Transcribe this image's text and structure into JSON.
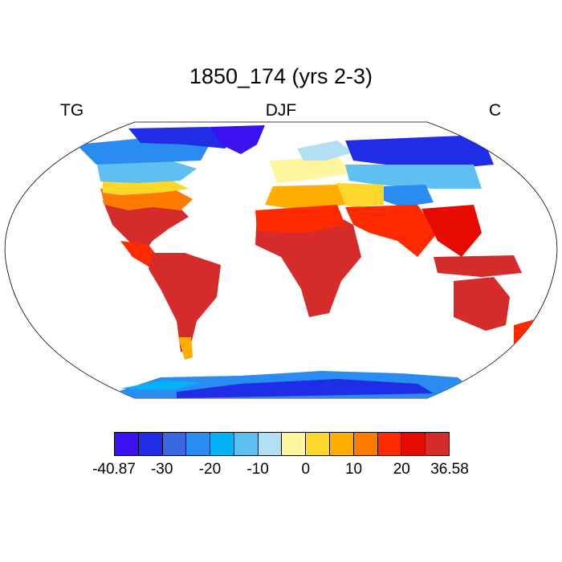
{
  "title": "1850_174 (yrs 2-3)",
  "left_label": "TG",
  "center_label": "DJF",
  "right_label": "C",
  "colorbar": {
    "colors": [
      "#3a12f0",
      "#1f2de6",
      "#3a68e2",
      "#2a8bf0",
      "#06b2f7",
      "#5ec0f0",
      "#b3dff2",
      "#fff6a0",
      "#ffd72a",
      "#ffad00",
      "#ff7a00",
      "#ff2a00",
      "#e60a00",
      "#d52b2b"
    ],
    "tick_labels": [
      "-40.87",
      "-30",
      "-20",
      "-10",
      "0",
      "10",
      "20",
      "36.58"
    ],
    "tick_boundaries": [
      0,
      2,
      4,
      6,
      8,
      10,
      12,
      14
    ]
  }
}
